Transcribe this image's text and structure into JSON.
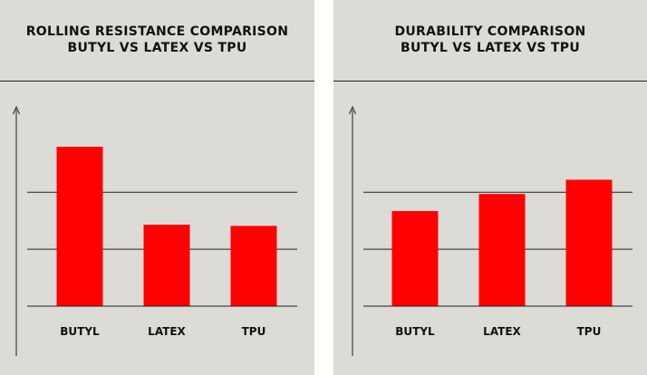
{
  "colors": {
    "panel": "#dcdbd6",
    "bar": "#ff0000",
    "line": "#222222",
    "text": "#111111"
  },
  "chart_data": [
    {
      "type": "bar",
      "title_line1": "ROLLING RESISTANCE COMPARISON",
      "title_line2": "BUTYL VS LATEX VS TPU",
      "categories": [
        "BUTYL",
        "LATEX",
        "TPU"
      ],
      "values": [
        2.8,
        1.43,
        1.41
      ],
      "ylim": [
        0,
        3.5
      ],
      "grid": true,
      "y_tick_labels": false
    },
    {
      "type": "bar",
      "title_line1": "DURABILITY COMPARISON",
      "title_line2": "BUTYL VS LATEX VS TPU",
      "categories": [
        "BUTYL",
        "LATEX",
        "TPU"
      ],
      "values": [
        1.67,
        1.97,
        2.22
      ],
      "ylim": [
        0,
        3.5
      ],
      "grid": true,
      "y_tick_labels": false
    }
  ]
}
